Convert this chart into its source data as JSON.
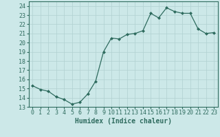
{
  "x": [
    0,
    1,
    2,
    3,
    4,
    5,
    6,
    7,
    8,
    9,
    10,
    11,
    12,
    13,
    14,
    15,
    16,
    17,
    18,
    19,
    20,
    21,
    22,
    23
  ],
  "y": [
    15.3,
    14.9,
    14.7,
    14.1,
    13.8,
    13.3,
    13.5,
    14.4,
    15.8,
    19.0,
    20.5,
    20.4,
    20.9,
    21.0,
    21.3,
    23.2,
    22.7,
    23.8,
    23.4,
    23.2,
    23.2,
    21.5,
    21.0,
    21.1
  ],
  "xlabel": "Humidex (Indice chaleur)",
  "xlim": [
    -0.5,
    23.5
  ],
  "ylim": [
    13,
    24.5
  ],
  "yticks": [
    13,
    14,
    15,
    16,
    17,
    18,
    19,
    20,
    21,
    22,
    23,
    24
  ],
  "xticks": [
    0,
    1,
    2,
    3,
    4,
    5,
    6,
    7,
    8,
    9,
    10,
    11,
    12,
    13,
    14,
    15,
    16,
    17,
    18,
    19,
    20,
    21,
    22,
    23
  ],
  "line_color": "#2e6b5e",
  "marker_color": "#2e6b5e",
  "bg_color": "#cce8e8",
  "grid_color": "#b0d0d0",
  "axis_fontsize": 7,
  "tick_fontsize": 6
}
